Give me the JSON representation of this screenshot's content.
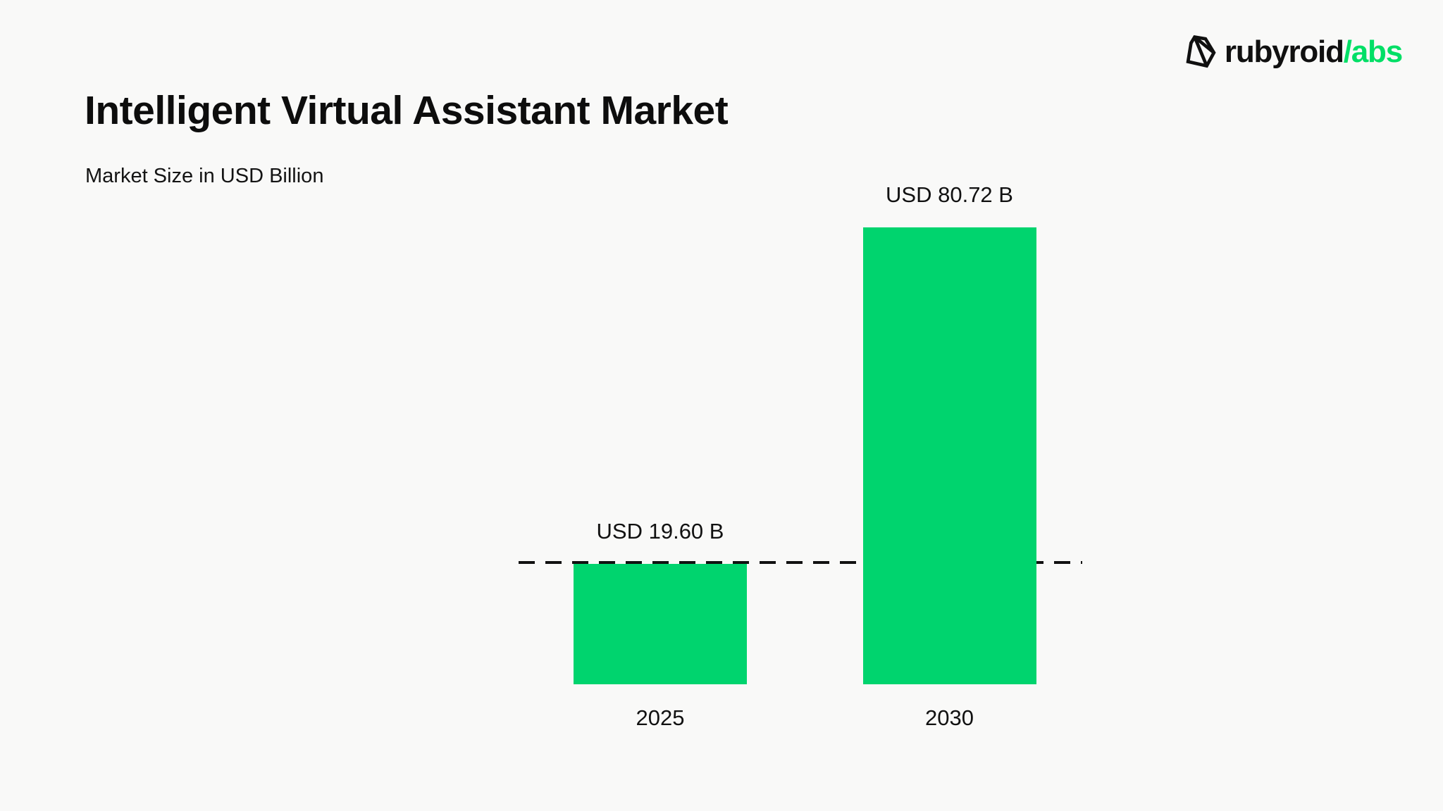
{
  "page": {
    "title": "Intelligent Virtual Assistant Market",
    "subtitle": "Market Size in USD Billion"
  },
  "logo": {
    "brand_black": "rubyroid",
    "brand_green": "/abs",
    "icon": "gem-icon",
    "green_hex": "#00df66"
  },
  "chart_data": {
    "type": "bar",
    "title": "Intelligent Virtual Assistant Market",
    "subtitle": "Market Size in USD Billion",
    "unit": "USD Billion",
    "categories": [
      "2025",
      "2030"
    ],
    "values": [
      19.6,
      80.72
    ],
    "value_labels": [
      "USD 19.60 B",
      "USD 80.72 B"
    ],
    "series": [
      {
        "name": "Market Size",
        "values": [
          19.6,
          80.72
        ]
      }
    ],
    "bar_color": "#00d46e",
    "reference_line": {
      "style": "dashed",
      "color": "#111111",
      "at_value": 19.6,
      "note": "horizontal dashed line at the 2025 market-size level"
    },
    "xlabel": "",
    "ylabel": "",
    "ylim": [
      0,
      90
    ],
    "grid": "off",
    "legend": "none",
    "axes_shown": false
  }
}
